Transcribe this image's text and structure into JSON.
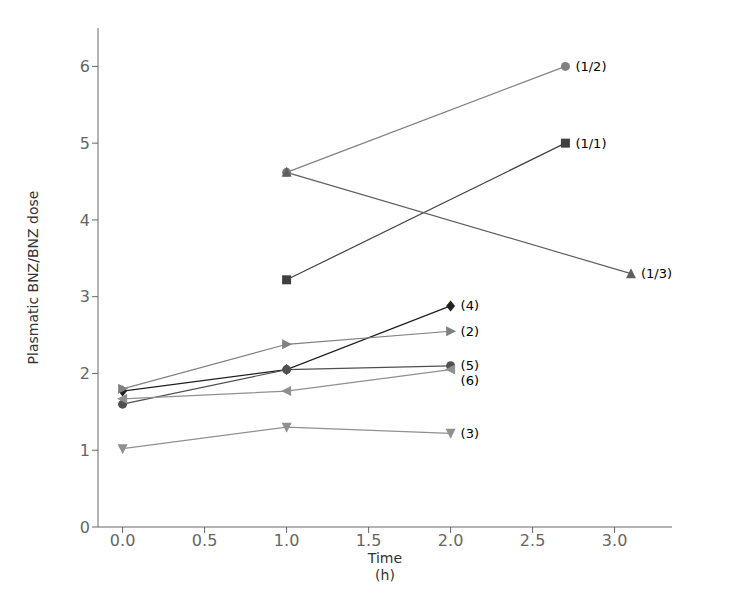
{
  "chart_data": {
    "type": "line",
    "xlabel": "Time\n(h)",
    "ylabel": "Plasmatic BNZ/BNZ dose",
    "xlim": [
      -0.15,
      3.35
    ],
    "ylim": [
      0,
      6.5
    ],
    "xticks": [
      {
        "value": 0.0,
        "label": "0.0"
      },
      0.5,
      {
        "value": 1.0,
        "label": "1.0"
      },
      1.5,
      {
        "value": 2.0,
        "label": "2.0"
      },
      2.5,
      {
        "value": 3.0,
        "label": "3.0"
      }
    ],
    "yticks": [
      0,
      1,
      2,
      3,
      4,
      5,
      6
    ],
    "grid": false,
    "series": [
      {
        "name": "(1/2)",
        "x": [
          1.0,
          2.7
        ],
        "values": [
          4.62,
          6.0
        ],
        "marker": "circle",
        "color": "#808080"
      },
      {
        "name": "(1/1)",
        "x": [
          1.0,
          2.7
        ],
        "values": [
          3.22,
          5.0
        ],
        "marker": "square",
        "color": "#404040"
      },
      {
        "name": "(1/3)",
        "x": [
          1.0,
          3.1
        ],
        "values": [
          4.62,
          3.3
        ],
        "marker": "triangle-up",
        "color": "#606060"
      },
      {
        "name": "(4)",
        "x": [
          0.0,
          1.0,
          2.0
        ],
        "values": [
          1.77,
          2.05,
          2.88
        ],
        "marker": "diamond",
        "color": "#202020"
      },
      {
        "name": "(2)",
        "x": [
          0.0,
          1.0,
          2.0
        ],
        "values": [
          1.8,
          2.38,
          2.55
        ],
        "marker": "triangle-right",
        "color": "#808080"
      },
      {
        "name": "(5)",
        "x": [
          0.0,
          1.0,
          2.0
        ],
        "values": [
          1.6,
          2.05,
          2.1
        ],
        "marker": "circle",
        "color": "#505050"
      },
      {
        "name": "(6)",
        "x": [
          0.0,
          1.0,
          2.0
        ],
        "values": [
          1.67,
          1.77,
          2.05
        ],
        "marker": "triangle-left",
        "color": "#909090"
      },
      {
        "name": "(3)",
        "x": [
          0.0,
          1.0,
          2.0
        ],
        "values": [
          1.02,
          1.3,
          1.22
        ],
        "marker": "triangle-down",
        "color": "#909090"
      }
    ]
  }
}
